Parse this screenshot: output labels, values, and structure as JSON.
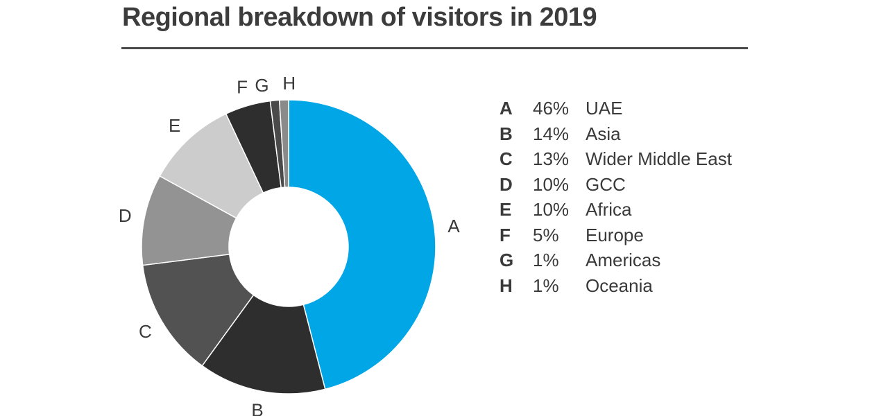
{
  "title": "Regional breakdown of visitors in 2019",
  "chart_data": {
    "type": "pie",
    "title": "Regional breakdown of visitors in 2019",
    "donut": true,
    "legend_position": "right",
    "slices": [
      {
        "key": "A",
        "label": "UAE",
        "value": 46,
        "pct_label": "46%",
        "color": "#00a6e6"
      },
      {
        "key": "B",
        "label": "Asia",
        "value": 14,
        "pct_label": "14%",
        "color": "#2e2e2e"
      },
      {
        "key": "C",
        "label": "Wider Middle East",
        "value": 13,
        "pct_label": "13%",
        "color": "#525252"
      },
      {
        "key": "D",
        "label": "GCC",
        "value": 10,
        "pct_label": "10%",
        "color": "#939393"
      },
      {
        "key": "E",
        "label": "Africa",
        "value": 10,
        "pct_label": "10%",
        "color": "#cccccc"
      },
      {
        "key": "F",
        "label": "Europe",
        "value": 5,
        "pct_label": "5%",
        "color": "#2e2e2e"
      },
      {
        "key": "G",
        "label": "Americas",
        "value": 1,
        "pct_label": "1%",
        "color": "#4a4a4a"
      },
      {
        "key": "H",
        "label": "Oceania",
        "value": 1,
        "pct_label": "1%",
        "color": "#8a8a8a"
      }
    ]
  }
}
